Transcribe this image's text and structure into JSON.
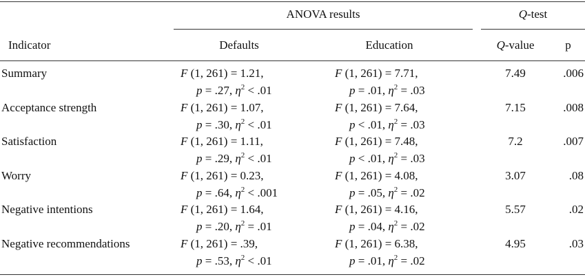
{
  "header": {
    "anova_group": "ANOVA results",
    "qtest_q": "Q",
    "qtest_rest": "-test",
    "indicator": "Indicator",
    "defaults": "Defaults",
    "education": "Education",
    "qvalue_q": "Q",
    "qvalue_rest": "-value",
    "p": "p"
  },
  "rows": [
    {
      "indicator": "Summary",
      "defaults": {
        "f": "(1, 261) = 1.21,",
        "p": "= .27,",
        "eta": "< .01"
      },
      "education": {
        "f": "(1, 261) = 7.71,",
        "p": "= .01,",
        "eta": "= .03"
      },
      "qvalue": "7.49",
      "pval": ".006"
    },
    {
      "indicator": "Acceptance strength",
      "defaults": {
        "f": "(1, 261) = 1.07,",
        "p": "= .30,",
        "eta": "< .01"
      },
      "education": {
        "f": "(1, 261) = 7.64,",
        "p": "< .01,",
        "eta": "= .03"
      },
      "qvalue": "7.15",
      "pval": ".008"
    },
    {
      "indicator": "Satisfaction",
      "defaults": {
        "f": "(1, 261) = 1.11,",
        "p": "= .29,",
        "eta": "< .01"
      },
      "education": {
        "f": "(1, 261) = 7.48,",
        "p": "< .01,",
        "eta": "= .03"
      },
      "qvalue": "7.2",
      "pval": ".007"
    },
    {
      "indicator": "Worry",
      "defaults": {
        "f": "(1, 261) = 0.23,",
        "p": "= .64,",
        "eta": "< .001"
      },
      "education": {
        "f": "(1, 261) = 4.08,",
        "p": "= .05,",
        "eta": "= .02"
      },
      "qvalue": "3.07",
      "pval": ".08"
    },
    {
      "indicator": "Negative intentions",
      "defaults": {
        "f": "(1, 261) = 1.64,",
        "p": "= .20,",
        "eta": "= .01"
      },
      "education": {
        "f": "(1, 261) = 4.16,",
        "p": "= .04,",
        "eta": "= .02"
      },
      "qvalue": "5.57",
      "pval": ".02"
    },
    {
      "indicator": "Negative recommendations",
      "defaults": {
        "f": "(1, 261) = .39,",
        "p": "= .53,",
        "eta": "< .01"
      },
      "education": {
        "f": "(1, 261) = 6.38,",
        "p": "= .01,",
        "eta": "= .02"
      },
      "qvalue": "4.95",
      "pval": ".03"
    }
  ]
}
